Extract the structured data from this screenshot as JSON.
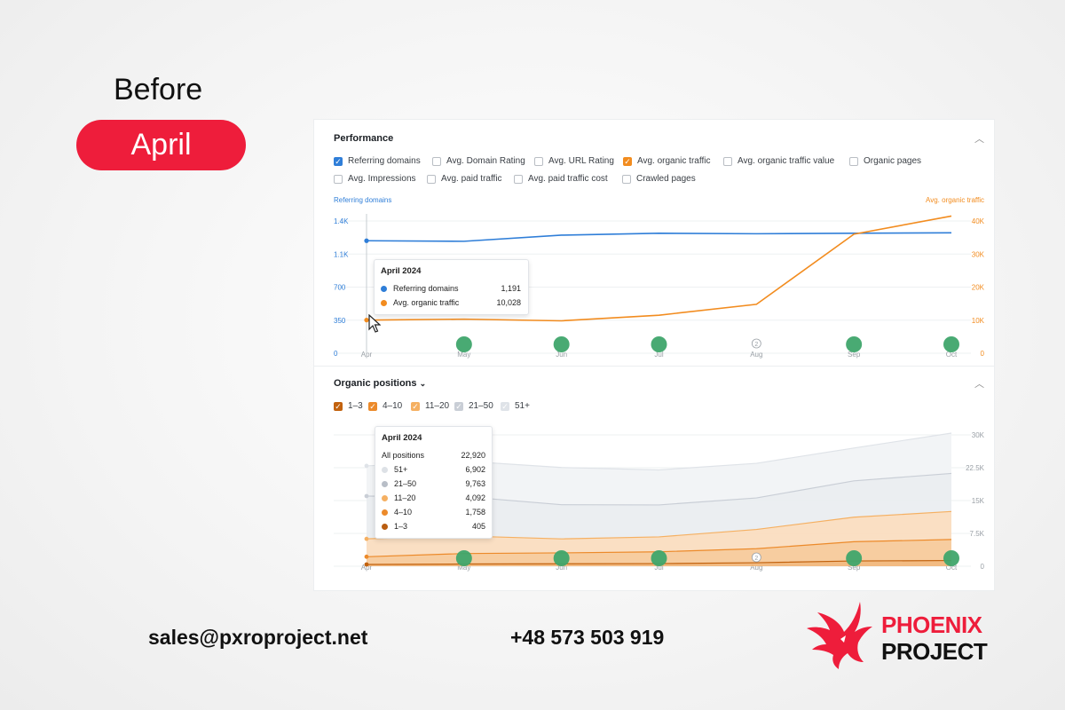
{
  "header": {
    "before_label": "Before",
    "month_pill": "April"
  },
  "performance": {
    "title": "Performance",
    "checkboxes": [
      {
        "label": "Referring domains",
        "checked": true,
        "color": "#2f7ed8"
      },
      {
        "label": "Avg. Domain Rating",
        "checked": false
      },
      {
        "label": "Avg. URL Rating",
        "checked": false
      },
      {
        "label": "Avg. organic traffic",
        "checked": true,
        "color": "#f28c1f"
      },
      {
        "label": "Avg. organic traffic value",
        "checked": false
      },
      {
        "label": "Organic pages",
        "checked": false
      },
      {
        "label": "Avg. Impressions",
        "checked": false
      },
      {
        "label": "Avg. paid traffic",
        "checked": false
      },
      {
        "label": "Avg. paid traffic cost",
        "checked": false
      },
      {
        "label": "Crawled pages",
        "checked": false
      }
    ],
    "left_axis_title": "Referring domains",
    "right_axis_title": "Avg. organic traffic",
    "left_ticks": [
      "1.4K",
      "1.1K",
      "700",
      "350",
      "0"
    ],
    "right_ticks": [
      "40K",
      "30K",
      "20K",
      "10K",
      "0"
    ],
    "x_ticks": [
      "Apr",
      "May",
      "Jun",
      "Jul",
      "Aug",
      "Sep",
      "Oct"
    ],
    "tooltip": {
      "title": "April 2024",
      "rows": [
        {
          "label": "Referring domains",
          "value": "1,191",
          "color": "#2f7ed8"
        },
        {
          "label": "Avg. organic traffic",
          "value": "10,028",
          "color": "#f28c1f"
        }
      ]
    },
    "annotation_marker": "2"
  },
  "organic": {
    "title": "Organic positions",
    "dropdown_icon": "chevron-down-icon",
    "checkboxes": [
      {
        "label": "1–3",
        "checked": true,
        "color": "#c2620e"
      },
      {
        "label": "4–10",
        "checked": true,
        "color": "#ec8a2a"
      },
      {
        "label": "11–20",
        "checked": true,
        "color": "#f5b062"
      },
      {
        "label": "21–50",
        "checked": true,
        "color": "#c9ced6"
      },
      {
        "label": "51+",
        "checked": true,
        "color": "#dfe3e8"
      }
    ],
    "right_ticks": [
      "30K",
      "22.5K",
      "15K",
      "7.5K",
      "0"
    ],
    "x_ticks": [
      "Apr",
      "May",
      "Jun",
      "Jul",
      "Aug",
      "Sep",
      "Oct"
    ],
    "tooltip": {
      "title": "April 2024",
      "total_label": "All positions",
      "total_value": "22,920",
      "rows": [
        {
          "label": "51+",
          "value": "6,902",
          "color": "#dde1e6"
        },
        {
          "label": "21–50",
          "value": "9,763",
          "color": "#b8bec7"
        },
        {
          "label": "11–20",
          "value": "4,092",
          "color": "#f5b062"
        },
        {
          "label": "4–10",
          "value": "1,758",
          "color": "#ec8a2a"
        },
        {
          "label": "1–3",
          "value": "405",
          "color": "#b95d10"
        }
      ]
    },
    "annotation_marker": "2"
  },
  "chart_data": [
    {
      "type": "line",
      "title": "Performance",
      "x": [
        "Apr",
        "May",
        "Jun",
        "Jul",
        "Aug",
        "Sep",
        "Oct"
      ],
      "series": [
        {
          "name": "Referring domains",
          "axis": "left",
          "values": [
            1191,
            1185,
            1250,
            1270,
            1265,
            1270,
            1275
          ],
          "color": "#2f7ed8"
        },
        {
          "name": "Avg. organic traffic",
          "axis": "right",
          "values": [
            10028,
            10300,
            9800,
            11500,
            14800,
            36000,
            41500
          ],
          "color": "#f28c1f"
        }
      ],
      "left_ylim": [
        0,
        1400
      ],
      "right_ylim": [
        0,
        40000
      ]
    },
    {
      "type": "area",
      "title": "Organic positions",
      "x": [
        "Apr",
        "May",
        "Jun",
        "Jul",
        "Aug",
        "Sep",
        "Oct"
      ],
      "series": [
        {
          "name": "1–3",
          "values": [
            405,
            500,
            550,
            600,
            800,
            1200,
            1300
          ],
          "color": "#c2620e"
        },
        {
          "name": "4–10",
          "values": [
            1758,
            2400,
            2500,
            2700,
            3200,
            4400,
            4800
          ],
          "color": "#ec8a2a"
        },
        {
          "name": "11–20",
          "values": [
            4092,
            4000,
            3200,
            3400,
            4400,
            5600,
            6400
          ],
          "color": "#f5b062"
        },
        {
          "name": "21–50",
          "values": [
            9763,
            9000,
            7800,
            7300,
            7200,
            8300,
            8700
          ],
          "color": "#c9ced6"
        },
        {
          "name": "51+",
          "values": [
            6902,
            8100,
            8500,
            8000,
            7900,
            7500,
            9200
          ],
          "color": "#dfe3e8"
        }
      ],
      "ylim": [
        0,
        30000
      ]
    }
  ],
  "footer": {
    "email": "sales@pxroproject.net",
    "phone": "+48 573 503 919",
    "brand_line1": "PHOENIX",
    "brand_line2": "PROJECT",
    "brand_color": "#ee1d3b"
  }
}
